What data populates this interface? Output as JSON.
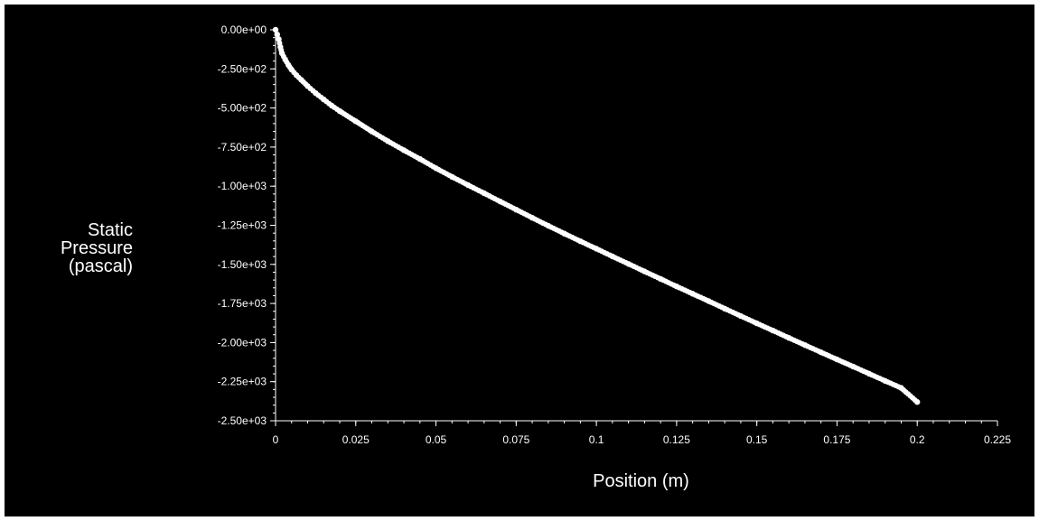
{
  "chart_data": {
    "type": "scatter",
    "title": "",
    "xlabel": "Position (m)",
    "ylabel": [
      "Static",
      "Pressure",
      "(pascal)"
    ],
    "xlim": [
      0,
      0.225
    ],
    "ylim": [
      -2500,
      0
    ],
    "xticks": [
      {
        "value": 0,
        "label": "0"
      },
      {
        "value": 0.025,
        "label": "0.025"
      },
      {
        "value": 0.05,
        "label": "0.05"
      },
      {
        "value": 0.075,
        "label": "0.075"
      },
      {
        "value": 0.1,
        "label": "0.1"
      },
      {
        "value": 0.125,
        "label": "0.125"
      },
      {
        "value": 0.15,
        "label": "0.15"
      },
      {
        "value": 0.175,
        "label": "0.175"
      },
      {
        "value": 0.2,
        "label": "0.2"
      },
      {
        "value": 0.225,
        "label": "0.225"
      }
    ],
    "yticks": [
      {
        "value": 0,
        "label": "0.00e+00"
      },
      {
        "value": -250,
        "label": "-2.50e+02"
      },
      {
        "value": -500,
        "label": "-5.00e+02"
      },
      {
        "value": -750,
        "label": "-7.50e+02"
      },
      {
        "value": -1000,
        "label": "-1.00e+03"
      },
      {
        "value": -1250,
        "label": "-1.25e+03"
      },
      {
        "value": -1500,
        "label": "-1.50e+03"
      },
      {
        "value": -1750,
        "label": "-1.75e+03"
      },
      {
        "value": -2000,
        "label": "-2.00e+03"
      },
      {
        "value": -2250,
        "label": "-2.25e+03"
      },
      {
        "value": -2500,
        "label": "-2.50e+03"
      }
    ],
    "grid": false,
    "colors": {
      "background": "#000000",
      "foreground": "#ffffff",
      "points": "#ffffff"
    },
    "series": [
      {
        "x": [
          0,
          0.0005,
          0.001,
          0.0015,
          0.002,
          0.003,
          0.004,
          0.005,
          0.0065,
          0.008,
          0.01,
          0.0125,
          0.015,
          0.0175,
          0.02,
          0.025,
          0.03,
          0.035,
          0.04,
          0.045,
          0.05,
          0.055,
          0.06,
          0.065,
          0.07,
          0.075,
          0.08,
          0.085,
          0.09,
          0.095,
          0.1,
          0.105,
          0.11,
          0.115,
          0.12,
          0.125,
          0.13,
          0.135,
          0.14,
          0.145,
          0.15,
          0.155,
          0.16,
          0.165,
          0.17,
          0.175,
          0.18,
          0.185,
          0.19,
          0.195,
          0.2
        ],
        "y": [
          0,
          -30,
          -60,
          -110,
          -150,
          -190,
          -225,
          -255,
          -290,
          -320,
          -360,
          -405,
          -445,
          -485,
          -520,
          -585,
          -650,
          -712,
          -770,
          -826,
          -885,
          -940,
          -993,
          -1045,
          -1098,
          -1150,
          -1202,
          -1253,
          -1303,
          -1352,
          -1400,
          -1449,
          -1497,
          -1545,
          -1593,
          -1641,
          -1688,
          -1735,
          -1783,
          -1830,
          -1877,
          -1923,
          -1970,
          -2016,
          -2062,
          -2108,
          -2153,
          -2199,
          -2245,
          -2290,
          -2380
        ]
      }
    ]
  }
}
